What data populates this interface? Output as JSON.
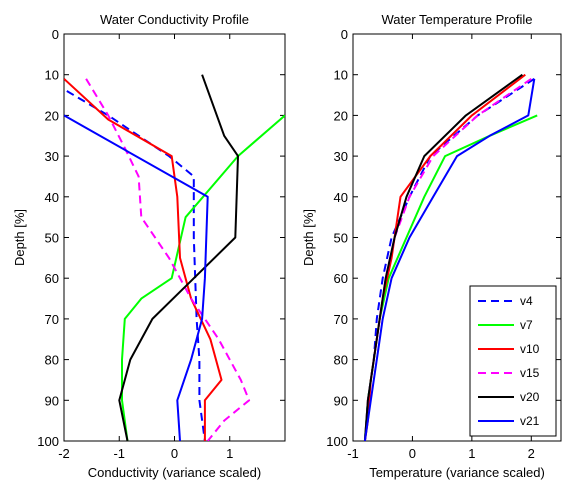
{
  "chart_data": [
    {
      "type": "line",
      "title": "Water Conductivity Profile",
      "xlabel": "Conductivity (variance scaled)",
      "ylabel": "Depth [%]",
      "xlim": [
        -2,
        2
      ],
      "ylim": [
        0,
        100
      ],
      "y_reversed": true,
      "xticks": [
        -2,
        -1,
        0,
        1
      ],
      "yticks": [
        0,
        10,
        20,
        30,
        40,
        50,
        60,
        70,
        80,
        90,
        100
      ],
      "grid": false,
      "series": [
        {
          "name": "v4",
          "color": "#0000ff",
          "dash": "dashed",
          "points": [
            [
              -1.95,
              14
            ],
            [
              -1.2,
              20
            ],
            [
              -0.1,
              30
            ],
            [
              0.35,
              35
            ],
            [
              0.35,
              50
            ],
            [
              0.4,
              70
            ],
            [
              0.45,
              80
            ],
            [
              0.45,
              90
            ],
            [
              0.55,
              100
            ]
          ]
        },
        {
          "name": "v7",
          "color": "#00ff00",
          "dash": "solid",
          "points": [
            [
              2.0,
              20
            ],
            [
              1.15,
              30
            ],
            [
              0.2,
              45
            ],
            [
              -0.05,
              60
            ],
            [
              -0.6,
              65
            ],
            [
              -0.9,
              70
            ],
            [
              -0.95,
              80
            ],
            [
              -0.95,
              90
            ],
            [
              -0.85,
              100
            ]
          ]
        },
        {
          "name": "v10",
          "color": "#ff0000",
          "dash": "solid",
          "points": [
            [
              -2.0,
              11
            ],
            [
              -1.2,
              21
            ],
            [
              -0.05,
              30
            ],
            [
              0.05,
              40
            ],
            [
              0.1,
              55
            ],
            [
              0.3,
              65
            ],
            [
              0.65,
              75
            ],
            [
              0.85,
              85
            ],
            [
              0.55,
              90
            ],
            [
              0.55,
              100
            ]
          ]
        },
        {
          "name": "v15",
          "color": "#ff00ff",
          "dash": "dashed",
          "points": [
            [
              -1.6,
              11
            ],
            [
              -1.2,
              20
            ],
            [
              -0.9,
              28
            ],
            [
              -0.65,
              35
            ],
            [
              -0.6,
              45
            ],
            [
              -0.1,
              55
            ],
            [
              0.3,
              65
            ],
            [
              0.8,
              75
            ],
            [
              1.2,
              85
            ],
            [
              1.35,
              90
            ],
            [
              0.9,
              95
            ],
            [
              0.6,
              100
            ]
          ]
        },
        {
          "name": "v20",
          "color": "#000000",
          "dash": "solid",
          "points": [
            [
              0.5,
              10
            ],
            [
              0.9,
              25
            ],
            [
              1.15,
              30
            ],
            [
              1.1,
              50
            ],
            [
              0.2,
              62
            ],
            [
              -0.4,
              70
            ],
            [
              -0.8,
              80
            ],
            [
              -1.0,
              90
            ],
            [
              -0.85,
              100
            ]
          ]
        },
        {
          "name": "v21",
          "color": "#0000ff",
          "dash": "solid",
          "points": [
            [
              -2.0,
              20
            ],
            [
              0.6,
              40
            ],
            [
              0.55,
              60
            ],
            [
              0.5,
              70
            ],
            [
              0.3,
              80
            ],
            [
              0.05,
              90
            ],
            [
              0.1,
              100
            ]
          ]
        }
      ]
    },
    {
      "type": "line",
      "title": "Water Temperature Profile",
      "xlabel": "Temperature (variance scaled)",
      "ylabel": "Depth [%]",
      "xlim": [
        -1,
        2.5
      ],
      "ylim": [
        0,
        100
      ],
      "y_reversed": true,
      "xticks": [
        -1,
        0,
        1,
        2
      ],
      "yticks": [
        0,
        10,
        20,
        30,
        40,
        50,
        60,
        70,
        80,
        90,
        100
      ],
      "grid": false,
      "legend": {
        "position": "bottom-right"
      },
      "series": [
        {
          "name": "v4",
          "color": "#0000ff",
          "dash": "dashed",
          "points": [
            [
              2.05,
              11
            ],
            [
              1.1,
              20
            ],
            [
              0.3,
              30
            ],
            [
              -0.05,
              40
            ],
            [
              -0.35,
              50
            ],
            [
              -0.5,
              60
            ],
            [
              -0.6,
              70
            ],
            [
              -0.65,
              80
            ],
            [
              -0.75,
              90
            ],
            [
              -0.8,
              100
            ]
          ]
        },
        {
          "name": "v7",
          "color": "#00ff00",
          "dash": "solid",
          "points": [
            [
              2.1,
              20
            ],
            [
              1.3,
              25
            ],
            [
              0.55,
              30
            ],
            [
              0.2,
              40
            ],
            [
              -0.1,
              50
            ],
            [
              -0.4,
              60
            ],
            [
              -0.55,
              70
            ],
            [
              -0.65,
              80
            ],
            [
              -0.75,
              90
            ],
            [
              -0.8,
              100
            ]
          ]
        },
        {
          "name": "v10",
          "color": "#ff0000",
          "dash": "solid",
          "points": [
            [
              1.9,
              10
            ],
            [
              1.0,
              20
            ],
            [
              0.3,
              30
            ],
            [
              -0.2,
              40
            ],
            [
              -0.35,
              55
            ],
            [
              -0.5,
              65
            ],
            [
              -0.6,
              75
            ],
            [
              -0.7,
              85
            ],
            [
              -0.75,
              95
            ],
            [
              -0.8,
              100
            ]
          ]
        },
        {
          "name": "v15",
          "color": "#ff00ff",
          "dash": "dashed",
          "points": [
            [
              2.0,
              11
            ],
            [
              1.1,
              20
            ],
            [
              0.35,
              30
            ],
            [
              -0.05,
              40
            ],
            [
              -0.3,
              50
            ],
            [
              -0.45,
              60
            ],
            [
              -0.55,
              70
            ],
            [
              -0.65,
              80
            ],
            [
              -0.75,
              90
            ],
            [
              -0.8,
              100
            ]
          ]
        },
        {
          "name": "v20",
          "color": "#000000",
          "dash": "solid",
          "points": [
            [
              1.85,
              10
            ],
            [
              0.9,
              20
            ],
            [
              0.2,
              30
            ],
            [
              -0.1,
              40
            ],
            [
              -0.3,
              50
            ],
            [
              -0.45,
              60
            ],
            [
              -0.55,
              70
            ],
            [
              -0.65,
              80
            ],
            [
              -0.75,
              90
            ],
            [
              -0.8,
              100
            ]
          ]
        },
        {
          "name": "v21",
          "color": "#0000ff",
          "dash": "solid",
          "points": [
            [
              2.05,
              11
            ],
            [
              1.95,
              20
            ],
            [
              1.3,
              25
            ],
            [
              0.75,
              30
            ],
            [
              0.35,
              40
            ],
            [
              -0.05,
              50
            ],
            [
              -0.35,
              60
            ],
            [
              -0.5,
              70
            ],
            [
              -0.6,
              80
            ],
            [
              -0.7,
              90
            ],
            [
              -0.8,
              100
            ]
          ]
        }
      ]
    }
  ]
}
